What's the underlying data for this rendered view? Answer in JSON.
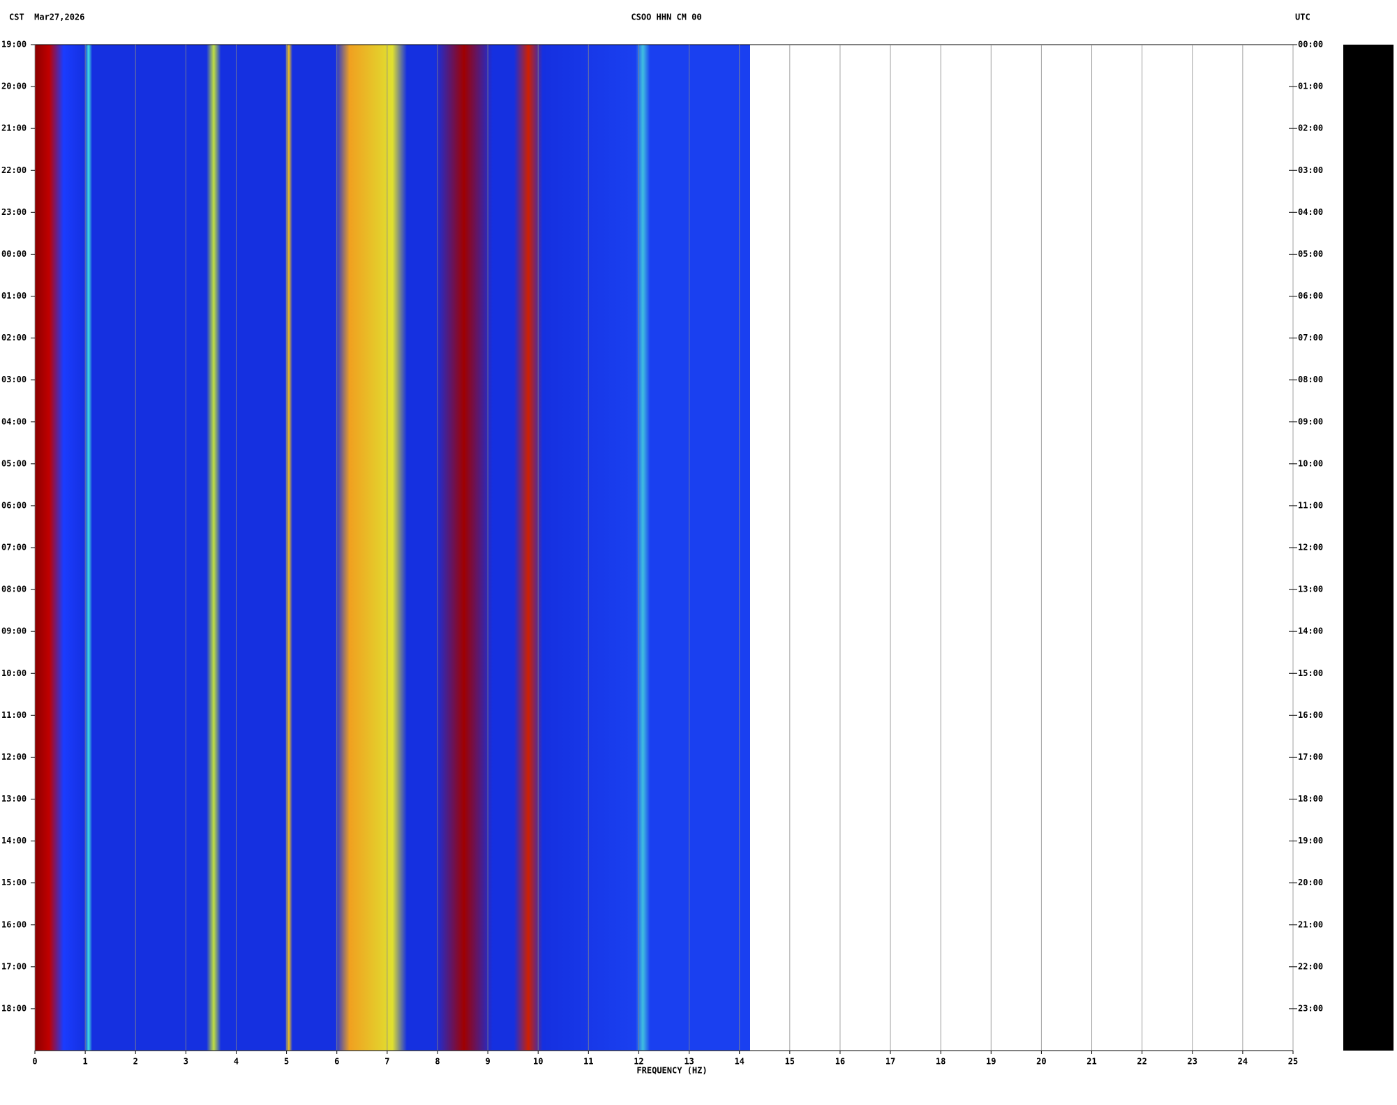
{
  "chart_data": {
    "type": "spectrogram",
    "title": "CSOO HHN CM 00",
    "left_label": "CST  Mar27,2026",
    "right_label": "UTC",
    "x_label": "FREQUENCY (HZ)",
    "xlim": [
      0,
      25
    ],
    "xticks": [
      0,
      1,
      2,
      3,
      4,
      5,
      6,
      7,
      8,
      9,
      10,
      11,
      12,
      13,
      14,
      15,
      16,
      17,
      18,
      19,
      20,
      21,
      22,
      23,
      24,
      25
    ],
    "ylim": [
      0,
      24
    ],
    "yticks": [
      {
        "value": 0,
        "label": "19:00"
      },
      {
        "value": 1,
        "label": "20:00"
      },
      {
        "value": 2,
        "label": "21:00"
      },
      {
        "value": 3,
        "label": "22:00"
      },
      {
        "value": 4,
        "label": "23:00"
      },
      {
        "value": 5,
        "label": "00:00"
      },
      {
        "value": 6,
        "label": "01:00"
      },
      {
        "value": 7,
        "label": "02:00"
      },
      {
        "value": 8,
        "label": "03:00"
      },
      {
        "value": 9,
        "label": "04:00"
      },
      {
        "value": 10,
        "label": "05:00"
      },
      {
        "value": 11,
        "label": "06:00"
      },
      {
        "value": 12,
        "label": "07:00"
      },
      {
        "value": 13,
        "label": "08:00"
      },
      {
        "value": 14,
        "label": "09:00"
      },
      {
        "value": 15,
        "label": "10:00"
      },
      {
        "value": 16,
        "label": "11:00"
      },
      {
        "value": 17,
        "label": "12:00"
      },
      {
        "value": 18,
        "label": "13:00"
      },
      {
        "value": 19,
        "label": "14:00"
      },
      {
        "value": 20,
        "label": "15:00"
      },
      {
        "value": 21,
        "label": "16:00"
      },
      {
        "value": 22,
        "label": "17:00"
      },
      {
        "value": 23,
        "label": "18:00"
      }
    ],
    "y2lim": [
      0,
      24
    ],
    "y2ticks": [
      {
        "value": 0,
        "label": "00:00"
      },
      {
        "value": 1,
        "label": "01:00"
      },
      {
        "value": 2,
        "label": "02:00"
      },
      {
        "value": 3,
        "label": "03:00"
      },
      {
        "value": 4,
        "label": "04:00"
      },
      {
        "value": 5,
        "label": "05:00"
      },
      {
        "value": 6,
        "label": "06:00"
      },
      {
        "value": 7,
        "label": "07:00"
      },
      {
        "value": 8,
        "label": "08:00"
      },
      {
        "value": 9,
        "label": "09:00"
      },
      {
        "value": 10,
        "label": "10:00"
      },
      {
        "value": 11,
        "label": "11:00"
      },
      {
        "value": 12,
        "label": "12:00"
      },
      {
        "value": 13,
        "label": "13:00"
      },
      {
        "value": 14,
        "label": "14:00"
      },
      {
        "value": 15,
        "label": "15:00"
      },
      {
        "value": 16,
        "label": "16:00"
      },
      {
        "value": 17,
        "label": "17:00"
      },
      {
        "value": 18,
        "label": "18:00"
      },
      {
        "value": 19,
        "label": "19:00"
      },
      {
        "value": 20,
        "label": "20:00"
      },
      {
        "value": 21,
        "label": "21:00"
      },
      {
        "value": 22,
        "label": "22:00"
      },
      {
        "value": 23,
        "label": "23:00"
      }
    ],
    "grid": true
  }
}
